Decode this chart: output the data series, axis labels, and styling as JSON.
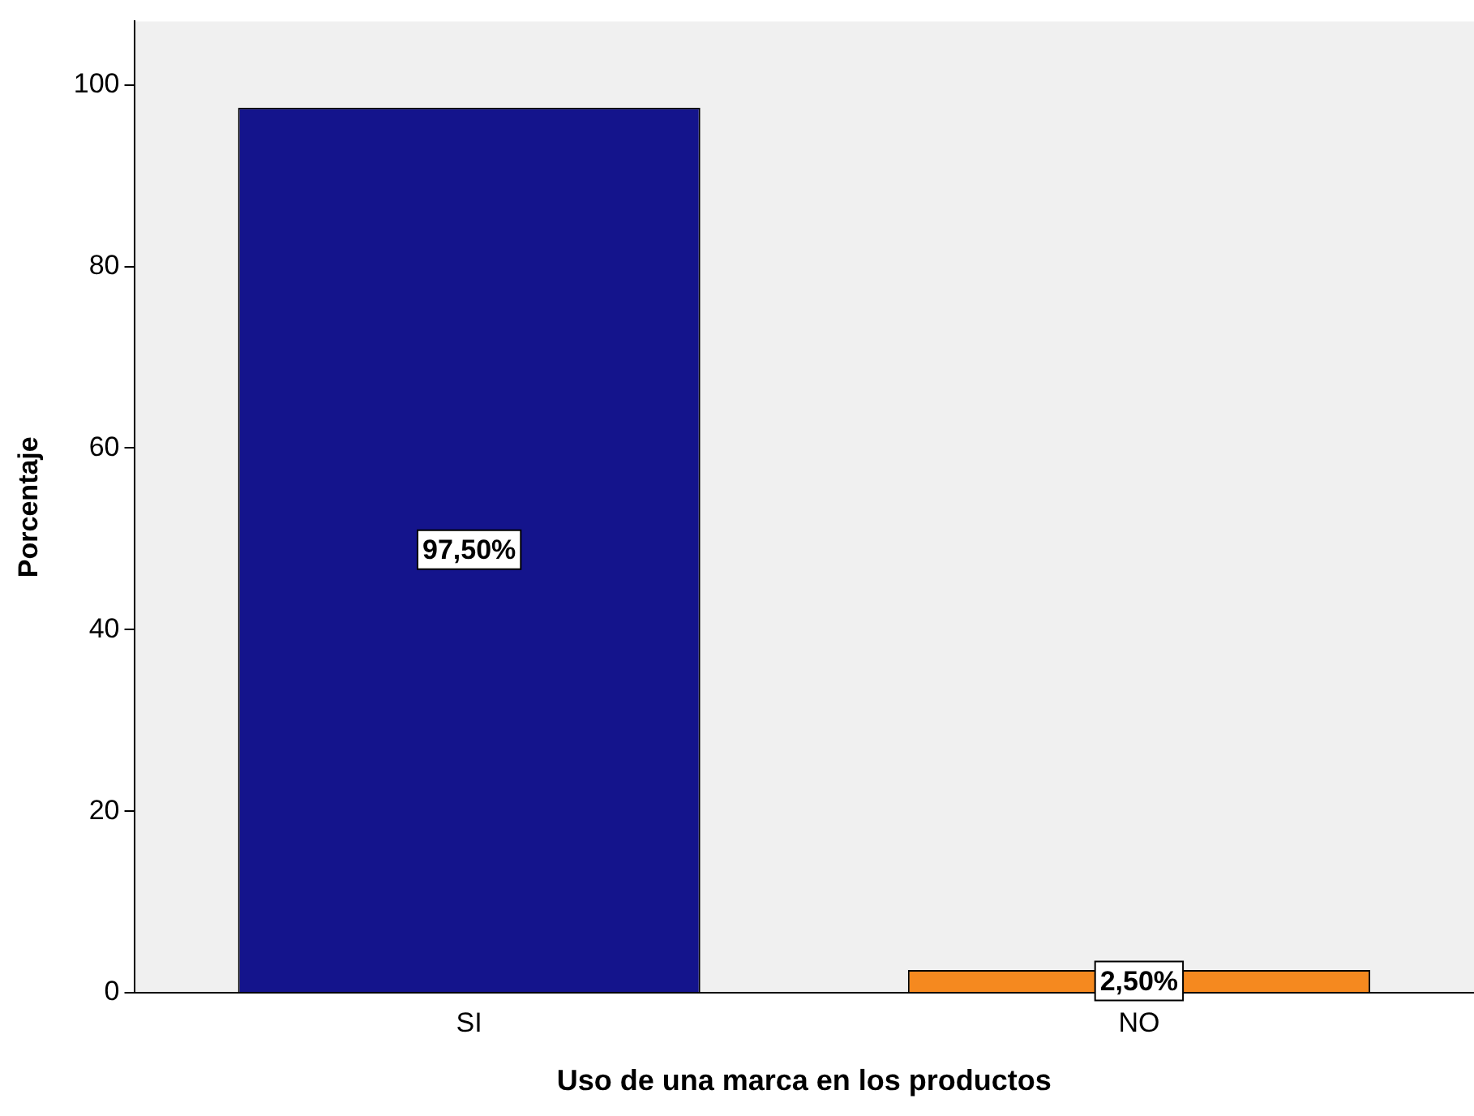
{
  "chart_data": {
    "type": "bar",
    "xlabel": "Uso de una marca en los productos",
    "ylabel": "Porcentaje",
    "categories": [
      "SI",
      "NO"
    ],
    "values": [
      97.5,
      2.5
    ],
    "colors": [
      "#14148c",
      "#f5891f"
    ],
    "value_labels": [
      "97,50%",
      "2,50%"
    ],
    "ylim": [
      0,
      107
    ],
    "yticks": [
      0,
      20,
      40,
      60,
      80,
      100
    ],
    "grid": false,
    "legend": false
  }
}
